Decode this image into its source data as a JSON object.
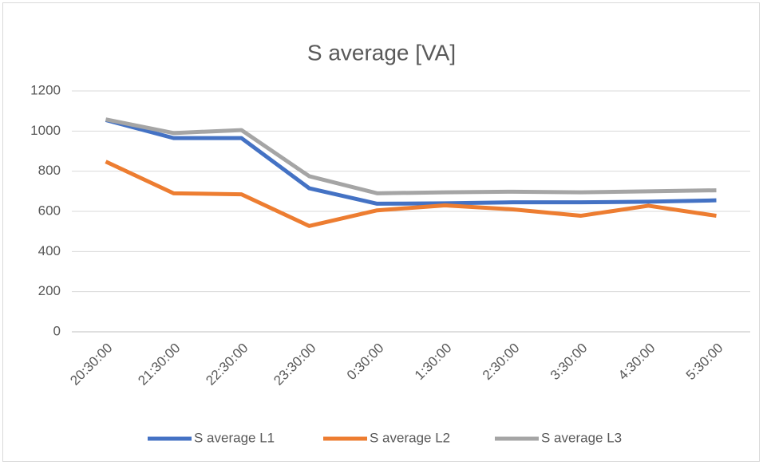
{
  "chart_data": {
    "type": "line",
    "title": "S average [VA]",
    "categories": [
      "20:30:00",
      "21:30:00",
      "22:30:00",
      "23:30:00",
      "0:30:00",
      "1:30:00",
      "2:30:00",
      "3:30:00",
      "4:30:00",
      "5:30:00"
    ],
    "series": [
      {
        "name": "S average L1",
        "color": "#4472c4",
        "values": [
          1055,
          965,
          965,
          715,
          638,
          640,
          645,
          645,
          648,
          655
        ]
      },
      {
        "name": "S average L2",
        "color": "#ed7d31",
        "values": [
          848,
          690,
          685,
          527,
          605,
          630,
          610,
          578,
          628,
          578
        ]
      },
      {
        "name": "S average L3",
        "color": "#a5a5a5",
        "values": [
          1058,
          990,
          1005,
          775,
          690,
          695,
          698,
          695,
          700,
          705
        ]
      }
    ],
    "ylim": [
      0,
      1200
    ],
    "yticks": [
      0,
      200,
      400,
      600,
      800,
      1000,
      1200
    ],
    "grid": true,
    "legend": "bottom"
  }
}
